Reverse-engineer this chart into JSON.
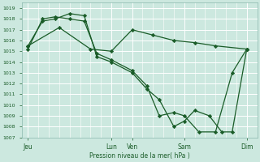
{
  "background_color": "#cce8df",
  "grid_color": "#ffffff",
  "line_color": "#1a5c28",
  "marker": "D",
  "markersize": 2.2,
  "linewidth": 0.9,
  "xlabel": "Pression niveau de la mer( hPa )",
  "ylim": [
    1007,
    1019.5
  ],
  "ytick_min": 1007,
  "ytick_max": 1019,
  "xtick_labels": [
    "Jeu",
    "Lun",
    "Ven",
    "Sam",
    "Dim"
  ],
  "xtick_positions": [
    0.0,
    4.0,
    5.0,
    7.5,
    10.5
  ],
  "xlim": [
    -0.3,
    11.0
  ],
  "series": [
    {
      "x": [
        0.0,
        0.7,
        1.3,
        2.0,
        2.7,
        3.3,
        4.0,
        5.0,
        5.7,
        6.3,
        7.0,
        7.5,
        8.0,
        8.7,
        9.3,
        9.8,
        10.5
      ],
      "y": [
        1015.5,
        1017.8,
        1018.0,
        1018.5,
        1018.3,
        1014.5,
        1014.0,
        1013.0,
        1011.5,
        1010.5,
        1008.0,
        1008.5,
        1009.5,
        1009.0,
        1007.5,
        1007.5,
        1015.2
      ]
    },
    {
      "x": [
        0.0,
        0.7,
        1.3,
        2.0,
        2.7,
        3.3,
        4.0,
        5.0,
        5.7,
        6.3,
        7.0,
        7.5,
        8.2,
        9.0,
        9.8,
        10.5
      ],
      "y": [
        1015.2,
        1018.0,
        1018.2,
        1018.0,
        1017.8,
        1014.8,
        1014.2,
        1013.2,
        1011.8,
        1009.0,
        1009.3,
        1009.0,
        1007.5,
        1007.5,
        1013.0,
        1015.2
      ]
    },
    {
      "x": [
        0.0,
        1.5,
        3.0,
        4.0,
        5.0,
        6.0,
        7.0,
        8.0,
        9.0,
        10.5
      ],
      "y": [
        1015.5,
        1017.2,
        1015.2,
        1015.0,
        1017.0,
        1016.5,
        1016.0,
        1015.8,
        1015.5,
        1015.2
      ]
    }
  ]
}
